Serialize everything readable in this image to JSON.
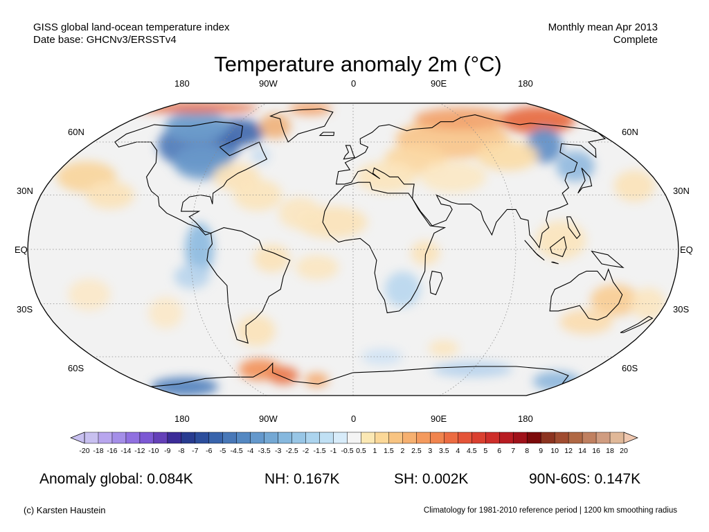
{
  "header": {
    "source_line1": "GISS global land-ocean temperature index",
    "source_line2": "Date base: GHCNv3/ERSSTv4",
    "period_line1": "Monthly mean Apr 2013",
    "period_line2": "Complete"
  },
  "title": "Temperature anomaly 2m (°C)",
  "map": {
    "projection": "robinson",
    "top_lon_labels": [
      "180",
      "90W",
      "0",
      "90E",
      "180"
    ],
    "bottom_lon_labels": [
      "180",
      "90W",
      "0",
      "90E",
      "180"
    ],
    "left_lat_labels": [
      "60N",
      "30N",
      "EQ",
      "30S",
      "60S"
    ],
    "right_lat_labels": [
      "60N",
      "30N",
      "EQ",
      "30S",
      "60S"
    ],
    "ocean_color": "#f2f2f2",
    "land_color": "#ffffff"
  },
  "colorbar": {
    "tick_labels": [
      "-20",
      "-18",
      "-16",
      "-14",
      "-12",
      "-10",
      "-9",
      "-8",
      "-7",
      "-6",
      "-5",
      "-4.5",
      "-4",
      "-3.5",
      "-3",
      "-2.5",
      "-2",
      "-1.5",
      "-1",
      "-0.5",
      "0.5",
      "1",
      "1.5",
      "2",
      "2.5",
      "3",
      "3.5",
      "4",
      "4.5",
      "5",
      "6",
      "7",
      "8",
      "9",
      "10",
      "12",
      "14",
      "16",
      "18",
      "20"
    ],
    "colors": [
      "#c8c0f0",
      "#b8a6ee",
      "#a48ee8",
      "#9070e0",
      "#7c58d4",
      "#6440b8",
      "#3c2c98",
      "#283c90",
      "#2c4e9c",
      "#3864ac",
      "#4878b8",
      "#5488c2",
      "#6498cc",
      "#74a8d4",
      "#86b8de",
      "#98c6e6",
      "#acd4ee",
      "#c0e0f4",
      "#d8ecfa",
      "#f4f4f4",
      "#fbe8b4",
      "#fbd898",
      "#f8c482",
      "#f6b070",
      "#f49a5e",
      "#f0844e",
      "#ec6c42",
      "#e45438",
      "#da4030",
      "#ce2e2a",
      "#b81c22",
      "#a0121a",
      "#7c0a0a",
      "#8c3420",
      "#a04c30",
      "#b06844",
      "#c08060",
      "#d09c80",
      "#e0b898"
    ],
    "left_arrow_color": "#c8c0f0",
    "right_arrow_color": "#f0c8b0"
  },
  "stats": {
    "global": "Anomaly global: 0.084K",
    "nh": "NH: 0.167K",
    "sh": "SH: 0.002K",
    "arctic": "90N-60S: 0.147K"
  },
  "footer": {
    "credit": "(c) Karsten Haustein",
    "note": "Climatology for 1981-2010 reference period | 1200 km smoothing radius"
  }
}
